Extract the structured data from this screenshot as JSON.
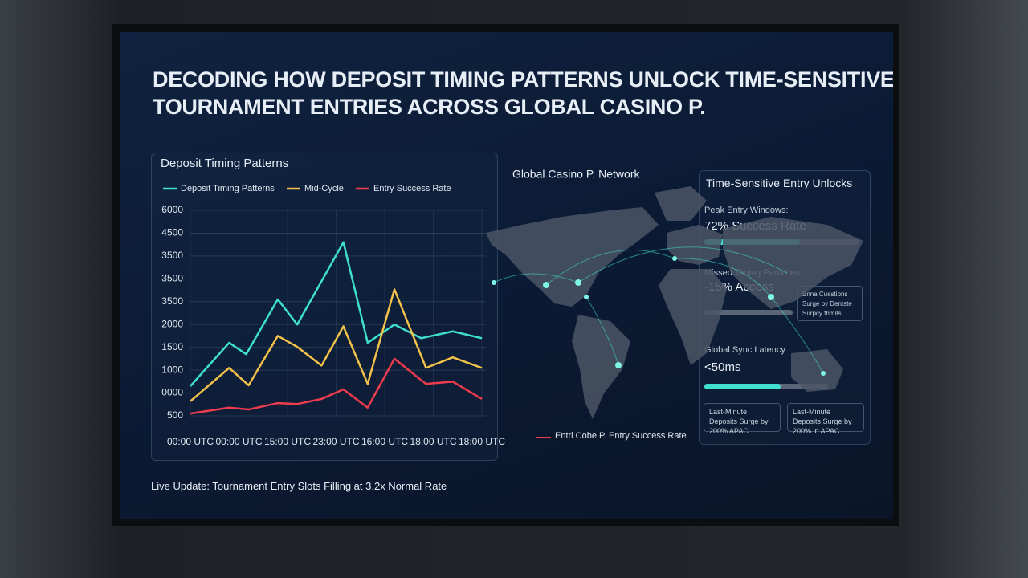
{
  "header": {
    "title_lines": [
      "DECODING HOW DEPOSIT TIMING PATTERNS UNLOCK TIME-SENSITIVE",
      "TOURNAMENT ENTRIES ACROSS GLOBAL CASINO P."
    ]
  },
  "chart_data": {
    "type": "line",
    "title": "Deposit Timing Patterns",
    "xlim": [
      0,
      12
    ],
    "xticks": [
      {
        "value": 0,
        "label": "00:00 UTC"
      },
      {
        "value": 2,
        "label": "00:00 UTC"
      },
      {
        "value": 4,
        "label": "15:00 UTC"
      },
      {
        "value": 6,
        "label": "23:00 UTC"
      },
      {
        "value": 8,
        "label": "16:00 UTC"
      },
      {
        "value": 10,
        "label": "18:00 UTC"
      },
      {
        "value": 12,
        "label": "18:00 UTC"
      }
    ],
    "ylim": [
      500,
      5000
    ],
    "yticks": [
      500,
      {
        "value": 1000,
        "label": "0000"
      },
      {
        "value": 1500,
        "label": "1000"
      },
      {
        "value": 2000,
        "label": "1500"
      },
      {
        "value": 2500,
        "label": "2000"
      },
      {
        "value": 3000,
        "label": "3500"
      },
      {
        "value": 3500,
        "label": "3500"
      },
      {
        "value": 4000,
        "label": "3500"
      },
      {
        "value": 4500,
        "label": "4500"
      },
      {
        "value": 5000,
        "label": "6000"
      }
    ],
    "grid": true,
    "series": [
      {
        "name": "Deposit Timing Patterns",
        "color": "#3fe0cf",
        "x": [
          0,
          1.6,
          2.3,
          3.6,
          4.4,
          6.3,
          7.3,
          8.4,
          9.5,
          10.8,
          12
        ],
        "values": [
          1150,
          2100,
          1850,
          3050,
          2500,
          4300,
          2100,
          2500,
          2200,
          2350,
          2200
        ]
      },
      {
        "name": "Mid-Cycle",
        "color": "#f2c14a",
        "x": [
          0,
          1.6,
          2.4,
          3.6,
          4.4,
          5.4,
          6.3,
          7.3,
          8.4,
          9.7,
          10.8,
          12
        ],
        "values": [
          820,
          1550,
          1170,
          2250,
          2010,
          1600,
          2460,
          1200,
          3270,
          1550,
          1780,
          1550
        ]
      },
      {
        "name": "Entry Success Rate",
        "color": "#ee3b4e",
        "x": [
          0,
          1.6,
          2.4,
          3.6,
          4.4,
          5.4,
          6.3,
          7.3,
          8.4,
          9.7,
          10.8,
          12
        ],
        "values": [
          550,
          680,
          640,
          780,
          760,
          870,
          1080,
          680,
          1750,
          1200,
          1250,
          870
        ]
      }
    ]
  },
  "map": {
    "title": "Global Casino P. Network",
    "legend": "Entrl Cobe P. Entry Success Rate"
  },
  "panel": {
    "title": "Time-Sensitive Entry Unlocks",
    "peak_label": "Peak Entry Windows:",
    "peak_value": "72% Success Rate",
    "missed_label": "Missed Timing Penalties:",
    "missed_value": "-15% Access",
    "note": "Bnna Cuestions Surge by Dentste Surpcy fhmits",
    "latency_label": "Global Sync Latency",
    "latency_value": "<50ms",
    "cards": [
      "Last-Minute Deposits Surge by 200% APAC",
      "Last-Minute Deposits Surge by 200% in APAC"
    ]
  },
  "footer": {
    "text": "Live Update: Tournament Entry Slots Filling at 3.2x Normal Rate"
  }
}
